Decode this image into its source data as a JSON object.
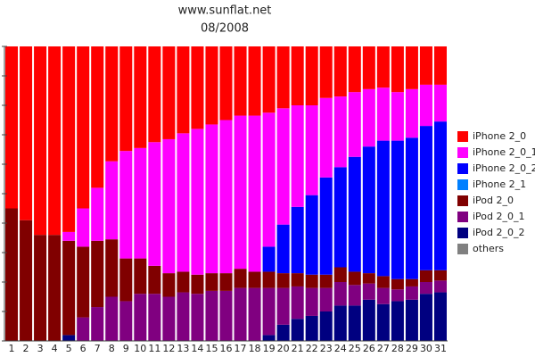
{
  "chart_data": {
    "type": "stacked_bar_100",
    "title": "www.sunflat.net",
    "subtitle": "08/2008",
    "categories": [
      "1",
      "2",
      "3",
      "4",
      "5",
      "6",
      "7",
      "8",
      "9",
      "10",
      "11",
      "12",
      "13",
      "14",
      "15",
      "16",
      "17",
      "18",
      "19",
      "20",
      "21",
      "22",
      "23",
      "24",
      "25",
      "26",
      "27",
      "28",
      "29",
      "30",
      "31"
    ],
    "series": [
      {
        "name": "iPhone 2_0",
        "color": "#ff0000",
        "values": [
          55,
          59,
          64,
          64,
          63,
          55,
          48,
          39,
          35.5,
          34.5,
          32.5,
          31.5,
          29.5,
          28,
          26.5,
          25,
          23.5,
          23.5,
          22.5,
          21,
          20,
          20,
          17.5,
          17,
          15.5,
          14.5,
          14,
          15.5,
          14.5,
          13,
          13
        ]
      },
      {
        "name": "iPhone 2_0_1",
        "color": "#ff00ff",
        "values": [
          0,
          0,
          0,
          0,
          3,
          13,
          18,
          26.5,
          36.5,
          37.5,
          42,
          45.5,
          47,
          49.5,
          50.5,
          52,
          52,
          53,
          45.5,
          39.5,
          34.5,
          30.5,
          27,
          24,
          22,
          19.5,
          18,
          16.5,
          16.5,
          14,
          12.5
        ]
      },
      {
        "name": "iPhone 2_0_2",
        "color": "#0000ff",
        "values": [
          0,
          0,
          0,
          0,
          0,
          0,
          0,
          0,
          0,
          0,
          0,
          0,
          0,
          0,
          0,
          0,
          0,
          0,
          8.5,
          16.5,
          22.5,
          27,
          33,
          34,
          39,
          43,
          46,
          47,
          48,
          49,
          50.5
        ]
      },
      {
        "name": "iPhone 2_1",
        "color": "#0080ff",
        "values": [
          0,
          0,
          0,
          0,
          0,
          0,
          0,
          0,
          0,
          0,
          0,
          0,
          0,
          0,
          0,
          0,
          0,
          0,
          0,
          0,
          0,
          0,
          0,
          0,
          0,
          0,
          0,
          0,
          0,
          0,
          0
        ]
      },
      {
        "name": "iPod 2_0",
        "color": "#800000",
        "values": [
          45,
          41,
          36,
          36,
          32,
          24,
          22.5,
          19.5,
          14.5,
          12,
          9.5,
          8,
          7,
          6.5,
          6,
          6,
          6.5,
          5.5,
          5.5,
          5,
          4.5,
          4.5,
          4.5,
          5,
          4.5,
          3.5,
          4,
          3.5,
          2.5,
          4,
          3.5
        ]
      },
      {
        "name": "iPod 2_0_1",
        "color": "#800080",
        "values": [
          0,
          0,
          0,
          0,
          0,
          8,
          11.5,
          15,
          13.5,
          16,
          16,
          15,
          16.5,
          16,
          17,
          17,
          18,
          18,
          16,
          12.5,
          11,
          9.5,
          8,
          8,
          7,
          5.5,
          5.5,
          4,
          4.5,
          4,
          4
        ]
      },
      {
        "name": "iPod 2_0_2",
        "color": "#000080",
        "values": [
          0,
          0,
          0,
          0,
          2,
          0,
          0,
          0,
          0,
          0,
          0,
          0,
          0,
          0,
          0,
          0,
          0,
          0,
          2,
          5.5,
          7.5,
          8.5,
          10,
          12,
          12,
          14,
          12.5,
          13.5,
          14,
          16,
          16.5
        ]
      },
      {
        "name": "others",
        "color": "#808080",
        "values": [
          0,
          0,
          0,
          0,
          0,
          0,
          0,
          0,
          0,
          0,
          0,
          0,
          0,
          0,
          0,
          0,
          0,
          0,
          0,
          0,
          0,
          0,
          0,
          0,
          0,
          0,
          0,
          0,
          0,
          0,
          0
        ]
      }
    ],
    "ylim": [
      0,
      100
    ],
    "yticks": [
      0,
      10,
      20,
      30,
      40,
      50,
      60,
      70,
      80,
      90,
      100
    ]
  }
}
